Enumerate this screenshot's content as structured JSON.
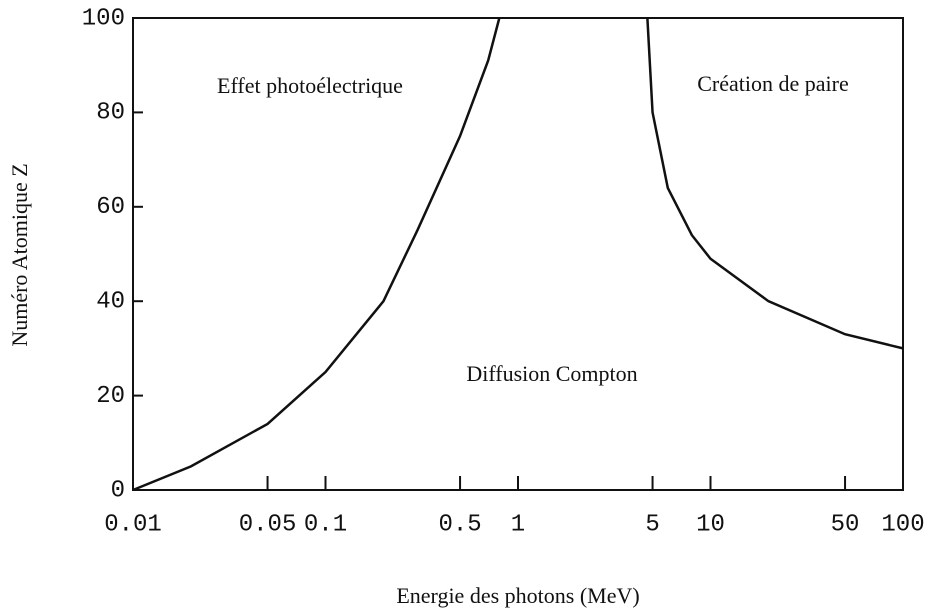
{
  "chart_data": {
    "type": "line",
    "xlabel": "Energie des photons (MeV)",
    "ylabel": "Numéro Atomique Z",
    "xscale": "log",
    "xlim": [
      0.01,
      100
    ],
    "ylim": [
      0,
      100
    ],
    "xticks": [
      0.01,
      0.05,
      0.1,
      0.5,
      1,
      5,
      10,
      50,
      100
    ],
    "yticks": [
      0,
      20,
      40,
      60,
      80,
      100
    ],
    "grid": false,
    "series": [
      {
        "color": "#111111",
        "x": [
          0.01,
          0.02,
          0.05,
          0.1,
          0.2,
          0.3,
          0.5,
          0.7,
          0.8
        ],
        "values": [
          0,
          5,
          14,
          25,
          40,
          55,
          75,
          91,
          100
        ]
      },
      {
        "color": "#111111",
        "x": [
          4.7,
          5,
          6,
          8,
          10,
          20,
          50,
          100
        ],
        "values": [
          100,
          80,
          64,
          54,
          49,
          40,
          33,
          30
        ]
      }
    ],
    "annotations": [
      "Effet photoélectrique",
      "Création de paire",
      "Diffusion Compton"
    ]
  }
}
